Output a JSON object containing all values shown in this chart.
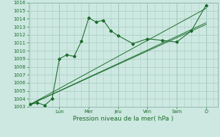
{
  "xlabel": "Pression niveau de la mer( hPa )",
  "ylim": [
    1003,
    1016
  ],
  "yticks": [
    1003,
    1004,
    1005,
    1006,
    1007,
    1008,
    1009,
    1010,
    1011,
    1012,
    1013,
    1014,
    1015,
    1016
  ],
  "background_color": "#cce8e0",
  "grid_color": "#aacec6",
  "grid_major_color": "#88b0a8",
  "line_color": "#1a6b2a",
  "day_labels": [
    "Lun",
    "Mer",
    "Jeu",
    "Ven",
    "Sam",
    "D"
  ],
  "day_positions": [
    2.0,
    4.0,
    6.0,
    8.0,
    10.0,
    12.0
  ],
  "xlim": [
    -0.1,
    12.8
  ],
  "line1_x": [
    0,
    0.5,
    1.0,
    1.5,
    2.0,
    2.5,
    3.0,
    3.5,
    4.0,
    4.5,
    5.0,
    5.5,
    6.0,
    7.0,
    8.0,
    9.0,
    10.0,
    11.0,
    12.0
  ],
  "line1_y": [
    1003.3,
    1003.5,
    1003.2,
    1004.0,
    1009.0,
    1009.5,
    1009.3,
    1011.2,
    1014.1,
    1013.6,
    1013.8,
    1012.5,
    1011.9,
    1010.9,
    1011.5,
    1011.3,
    1011.1,
    1012.5,
    1015.7
  ],
  "line2_x": [
    0,
    12.0
  ],
  "line2_y": [
    1003.3,
    1013.3
  ],
  "line3_x": [
    0,
    12.0
  ],
  "line3_y": [
    1003.3,
    1013.5
  ],
  "line4_x": [
    0,
    12.0
  ],
  "line4_y": [
    1003.3,
    1015.3
  ],
  "tick_fontsize": 5.0,
  "xlabel_fontsize": 6.5
}
